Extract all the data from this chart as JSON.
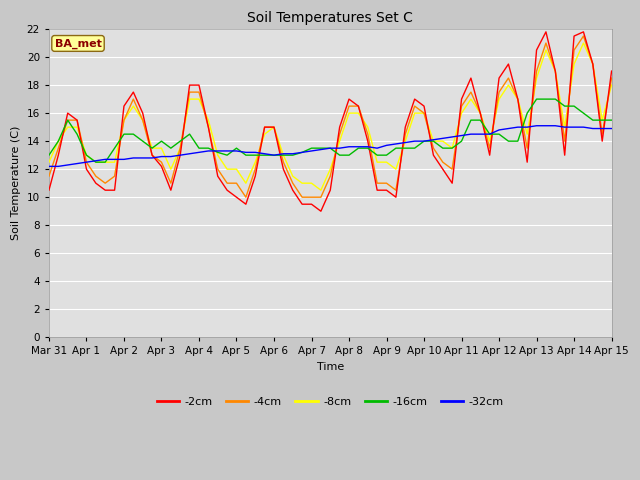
{
  "title": "Soil Temperatures Set C",
  "xlabel": "Time",
  "ylabel": "Soil Temperature (C)",
  "ylim": [
    0,
    22
  ],
  "yticks": [
    0,
    2,
    4,
    6,
    8,
    10,
    12,
    14,
    16,
    18,
    20,
    22
  ],
  "annotation": "BA_met",
  "annotation_color": "#8B0000",
  "annotation_bg": "#FFFF99",
  "fig_bg": "#D8D8D8",
  "plot_bg": "#E8E8E8",
  "line_colors": {
    "-2cm": "#FF0000",
    "-4cm": "#FF8800",
    "-8cm": "#FFFF00",
    "-16cm": "#00BB00",
    "-32cm": "#0000FF"
  },
  "x_tick_labels": [
    "Mar 31",
    "Apr 1",
    "Apr 2",
    "Apr 3",
    "Apr 4",
    "Apr 5",
    "Apr 6",
    "Apr 7",
    "Apr 8",
    "Apr 9",
    "Apr 10",
    "Apr 11",
    "Apr 12",
    "Apr 13",
    "Apr 14",
    "Apr 15"
  ],
  "series": {
    "-2cm": {
      "x": [
        0.0,
        0.25,
        0.5,
        0.75,
        1.0,
        1.25,
        1.5,
        1.75,
        2.0,
        2.25,
        2.5,
        2.75,
        3.0,
        3.25,
        3.5,
        3.75,
        4.0,
        4.25,
        4.5,
        4.75,
        5.0,
        5.25,
        5.5,
        5.75,
        6.0,
        6.25,
        6.5,
        6.75,
        7.0,
        7.25,
        7.5,
        7.75,
        8.0,
        8.25,
        8.5,
        8.75,
        9.0,
        9.25,
        9.5,
        9.75,
        10.0,
        10.25,
        10.5,
        10.75,
        11.0,
        11.25,
        11.5,
        11.75,
        12.0,
        12.25,
        12.5,
        12.75,
        13.0,
        13.25,
        13.5,
        13.75,
        14.0,
        14.25,
        14.5,
        14.75,
        15.0
      ],
      "y": [
        10.5,
        13.0,
        16.0,
        15.5,
        12.0,
        11.0,
        10.5,
        10.5,
        16.5,
        17.5,
        16.0,
        13.0,
        12.2,
        10.5,
        13.0,
        18.0,
        18.0,
        15.0,
        11.5,
        10.5,
        10.0,
        9.5,
        11.5,
        15.0,
        15.0,
        12.0,
        10.5,
        9.5,
        9.5,
        9.0,
        10.5,
        15.0,
        17.0,
        16.5,
        14.0,
        10.5,
        10.5,
        10.0,
        15.0,
        17.0,
        16.5,
        13.0,
        12.0,
        11.0,
        17.0,
        18.5,
        16.0,
        13.0,
        18.5,
        19.5,
        17.0,
        12.5,
        20.5,
        21.8,
        19.0,
        13.0,
        21.5,
        21.8,
        19.5,
        14.0,
        19.0
      ]
    },
    "-4cm": {
      "x": [
        0.0,
        0.25,
        0.5,
        0.75,
        1.0,
        1.25,
        1.5,
        1.75,
        2.0,
        2.25,
        2.5,
        2.75,
        3.0,
        3.25,
        3.5,
        3.75,
        4.0,
        4.25,
        4.5,
        4.75,
        5.0,
        5.25,
        5.5,
        5.75,
        6.0,
        6.25,
        6.5,
        6.75,
        7.0,
        7.25,
        7.5,
        7.75,
        8.0,
        8.25,
        8.5,
        8.75,
        9.0,
        9.25,
        9.5,
        9.75,
        10.0,
        10.25,
        10.5,
        10.75,
        11.0,
        11.25,
        11.5,
        11.75,
        12.0,
        12.25,
        12.5,
        12.75,
        13.0,
        13.25,
        13.5,
        13.75,
        14.0,
        14.25,
        14.5,
        14.75,
        15.0
      ],
      "y": [
        11.5,
        13.5,
        15.5,
        15.5,
        12.5,
        11.5,
        11.0,
        11.5,
        15.5,
        17.0,
        15.5,
        13.0,
        12.5,
        11.0,
        13.5,
        17.5,
        17.5,
        15.0,
        12.0,
        11.0,
        11.0,
        10.0,
        12.0,
        15.0,
        15.0,
        12.5,
        11.0,
        10.0,
        10.0,
        10.0,
        11.5,
        14.5,
        16.5,
        16.5,
        14.5,
        11.0,
        11.0,
        10.5,
        14.5,
        16.5,
        16.0,
        13.5,
        12.5,
        12.0,
        16.5,
        17.5,
        16.0,
        13.5,
        17.5,
        18.5,
        17.0,
        13.5,
        19.0,
        21.0,
        19.0,
        14.0,
        20.5,
        21.5,
        19.5,
        14.5,
        18.5
      ]
    },
    "-8cm": {
      "x": [
        0.0,
        0.25,
        0.5,
        0.75,
        1.0,
        1.25,
        1.5,
        1.75,
        2.0,
        2.25,
        2.5,
        2.75,
        3.0,
        3.25,
        3.5,
        3.75,
        4.0,
        4.25,
        4.5,
        4.75,
        5.0,
        5.25,
        5.5,
        5.75,
        6.0,
        6.25,
        6.5,
        6.75,
        7.0,
        7.25,
        7.5,
        7.75,
        8.0,
        8.25,
        8.5,
        8.75,
        9.0,
        9.25,
        9.5,
        9.75,
        10.0,
        10.25,
        10.5,
        10.75,
        11.0,
        11.25,
        11.5,
        11.75,
        12.0,
        12.25,
        12.5,
        12.75,
        13.0,
        13.25,
        13.5,
        13.75,
        14.0,
        14.25,
        14.5,
        14.75,
        15.0
      ],
      "y": [
        12.5,
        14.0,
        15.0,
        15.0,
        13.0,
        12.5,
        12.5,
        12.5,
        15.5,
        16.5,
        15.5,
        13.5,
        13.5,
        12.0,
        13.5,
        17.0,
        17.0,
        15.5,
        13.0,
        12.0,
        12.0,
        11.0,
        12.5,
        14.5,
        15.0,
        13.0,
        11.5,
        11.0,
        11.0,
        10.5,
        12.0,
        14.0,
        16.0,
        16.0,
        15.0,
        12.5,
        12.5,
        12.0,
        14.0,
        16.0,
        16.0,
        14.0,
        14.0,
        13.5,
        16.0,
        17.0,
        16.0,
        14.0,
        17.0,
        18.0,
        17.0,
        14.5,
        18.5,
        20.5,
        19.0,
        15.0,
        19.5,
        21.0,
        19.5,
        15.5,
        18.0
      ]
    },
    "-16cm": {
      "x": [
        0.0,
        0.25,
        0.5,
        0.75,
        1.0,
        1.25,
        1.5,
        1.75,
        2.0,
        2.25,
        2.5,
        2.75,
        3.0,
        3.25,
        3.5,
        3.75,
        4.0,
        4.25,
        4.5,
        4.75,
        5.0,
        5.25,
        5.5,
        5.75,
        6.0,
        6.25,
        6.5,
        6.75,
        7.0,
        7.25,
        7.5,
        7.75,
        8.0,
        8.25,
        8.5,
        8.75,
        9.0,
        9.25,
        9.5,
        9.75,
        10.0,
        10.25,
        10.5,
        10.75,
        11.0,
        11.25,
        11.5,
        11.75,
        12.0,
        12.25,
        12.5,
        12.75,
        13.0,
        13.25,
        13.5,
        13.75,
        14.0,
        14.25,
        14.5,
        14.75,
        15.0
      ],
      "y": [
        13.0,
        14.0,
        15.5,
        14.5,
        13.0,
        12.5,
        12.5,
        13.5,
        14.5,
        14.5,
        14.0,
        13.5,
        14.0,
        13.5,
        14.0,
        14.5,
        13.5,
        13.5,
        13.2,
        13.0,
        13.5,
        13.0,
        13.0,
        13.0,
        13.0,
        13.0,
        13.0,
        13.2,
        13.5,
        13.5,
        13.5,
        13.0,
        13.0,
        13.5,
        13.5,
        13.0,
        13.0,
        13.5,
        13.5,
        13.5,
        14.0,
        14.0,
        13.5,
        13.5,
        14.0,
        15.5,
        15.5,
        14.5,
        14.5,
        14.0,
        14.0,
        16.0,
        17.0,
        17.0,
        17.0,
        16.5,
        16.5,
        16.0,
        15.5,
        15.5,
        15.5
      ]
    },
    "-32cm": {
      "x": [
        0.0,
        0.25,
        0.5,
        0.75,
        1.0,
        1.25,
        1.5,
        1.75,
        2.0,
        2.25,
        2.5,
        2.75,
        3.0,
        3.25,
        3.5,
        3.75,
        4.0,
        4.25,
        4.5,
        4.75,
        5.0,
        5.25,
        5.5,
        5.75,
        6.0,
        6.25,
        6.5,
        6.75,
        7.0,
        7.25,
        7.5,
        7.75,
        8.0,
        8.25,
        8.5,
        8.75,
        9.0,
        9.25,
        9.5,
        9.75,
        10.0,
        10.25,
        10.5,
        10.75,
        11.0,
        11.25,
        11.5,
        11.75,
        12.0,
        12.25,
        12.5,
        12.75,
        13.0,
        13.25,
        13.5,
        13.75,
        14.0,
        14.25,
        14.5,
        14.75,
        15.0
      ],
      "y": [
        12.2,
        12.2,
        12.3,
        12.4,
        12.5,
        12.6,
        12.7,
        12.7,
        12.7,
        12.8,
        12.8,
        12.8,
        12.9,
        12.9,
        13.0,
        13.1,
        13.2,
        13.3,
        13.3,
        13.3,
        13.3,
        13.2,
        13.2,
        13.1,
        13.0,
        13.1,
        13.1,
        13.2,
        13.3,
        13.4,
        13.5,
        13.5,
        13.6,
        13.6,
        13.6,
        13.5,
        13.7,
        13.8,
        13.9,
        14.0,
        14.0,
        14.1,
        14.2,
        14.3,
        14.4,
        14.5,
        14.5,
        14.5,
        14.8,
        14.9,
        15.0,
        15.0,
        15.1,
        15.1,
        15.1,
        15.0,
        15.0,
        15.0,
        14.9,
        14.9,
        14.9
      ]
    }
  }
}
